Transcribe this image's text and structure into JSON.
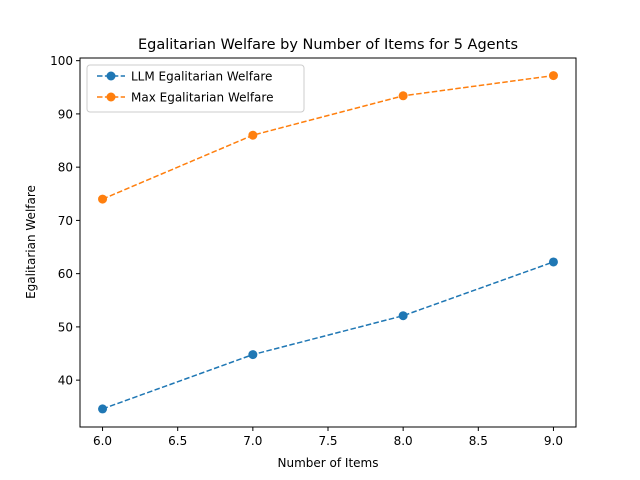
{
  "chart_data": {
    "type": "line",
    "title": "Egalitarian Welfare by Number of Items for 5 Agents",
    "xlabel": "Number of Items",
    "ylabel": "Egalitarian Welfare",
    "x": [
      6.0,
      7.0,
      8.0,
      9.0
    ],
    "xlim": [
      5.85,
      9.15
    ],
    "ylim": [
      31.2,
      100.5
    ],
    "xticks": [
      "6.0",
      "6.5",
      "7.0",
      "7.5",
      "8.0",
      "8.5",
      "9.0"
    ],
    "yticks": [
      "40",
      "50",
      "60",
      "70",
      "80",
      "90",
      "100"
    ],
    "grid": false,
    "legend_position": "upper-left",
    "series": [
      {
        "name": "LLM Egalitarian Welfare",
        "values": [
          34.6,
          44.8,
          52.1,
          62.2
        ],
        "color": "#1f77b4",
        "line_style": "dashed",
        "marker": "circle"
      },
      {
        "name": "Max Egalitarian Welfare",
        "values": [
          74.0,
          86.0,
          93.4,
          97.2
        ],
        "color": "#ff7f0e",
        "line_style": "dashed",
        "marker": "circle"
      }
    ]
  }
}
